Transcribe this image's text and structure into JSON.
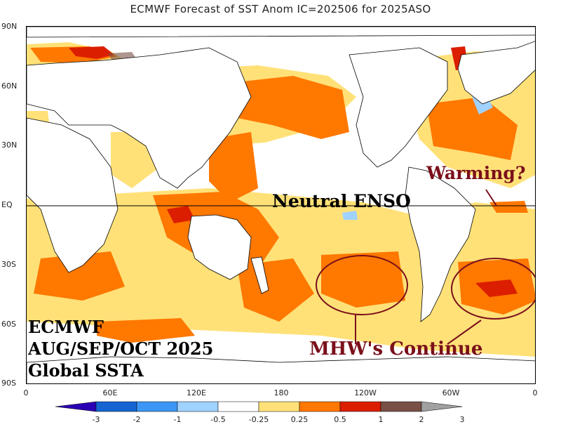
{
  "title": "ECMWF Forecast of SST Anom IC=202506 for 2025ASO",
  "map": {
    "lat_labels": [
      "90N",
      "60N",
      "30N",
      "EQ",
      "30S",
      "60S",
      "90S"
    ],
    "lon_labels": [
      "0",
      "60E",
      "120E",
      "180",
      "120W",
      "60W",
      "0"
    ],
    "annotations": {
      "enso": "Neutral ENSO",
      "warming": "Warming?",
      "mhw": "MHW's Continue"
    },
    "product_lines": [
      "ECMWF",
      "AUG/SEP/OCT 2025",
      "Global SSTA"
    ]
  },
  "colorbar": {
    "labels": [
      "-3",
      "-2",
      "-1",
      "-0.5",
      "-0.25",
      "0.25",
      "0.5",
      "1",
      "2",
      "3"
    ],
    "colors": [
      "#2b00b4",
      "#1464d2",
      "#3c96f5",
      "#a0d2ff",
      "#ffffff",
      "#ffe178",
      "#ff7800",
      "#dc1e00",
      "#785046",
      "#a0a0a0"
    ]
  },
  "colors": {
    "weak_warm": "#ffe178",
    "moderate_warm": "#ff7800",
    "strong_warm": "#dc1e00",
    "cool": "#a0d2ff",
    "annotation": "#7a0f1a"
  }
}
